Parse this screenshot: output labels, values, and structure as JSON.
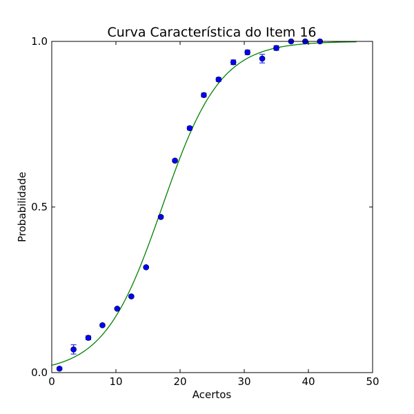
{
  "chart_data": {
    "type": "scatter",
    "title": "Curva Característica do Item 16",
    "xlabel": "Acertos",
    "ylabel": "Probabilidade",
    "xlim": [
      0,
      50
    ],
    "ylim": [
      0,
      1
    ],
    "xticks": [
      0,
      10,
      20,
      30,
      40,
      50
    ],
    "xtick_labels": [
      "0",
      "10",
      "20",
      "30",
      "40",
      "50"
    ],
    "yticks": [
      0,
      0.5,
      1
    ],
    "ytick_labels": [
      "0.0",
      "0.5",
      "1.0"
    ],
    "grid": false,
    "legend": "none",
    "points": {
      "x": [
        1.2,
        3.4,
        5.7,
        7.9,
        10.2,
        12.4,
        14.7,
        17.0,
        19.2,
        21.5,
        23.7,
        26.0,
        28.3,
        30.5,
        32.8,
        35.0,
        37.3,
        39.5,
        41.8
      ],
      "y": [
        0.012,
        0.07,
        0.105,
        0.143,
        0.193,
        0.23,
        0.318,
        0.47,
        0.64,
        0.738,
        0.838,
        0.885,
        0.937,
        0.967,
        0.948,
        0.98,
        1.0,
        1.0,
        1.0
      ],
      "yerr": [
        0.004,
        0.014,
        0.006,
        0.004,
        0.003,
        0.003,
        0.003,
        0.004,
        0.004,
        0.005,
        0.006,
        0.006,
        0.007,
        0.007,
        0.013,
        0.007,
        0.0,
        0.0,
        0.0
      ],
      "color": "#0000ff"
    },
    "fit_curve": {
      "model": "logistic",
      "x_range": [
        0,
        47.5
      ],
      "midpoint": 17.2,
      "slope": 0.22,
      "color": "#008000"
    }
  }
}
